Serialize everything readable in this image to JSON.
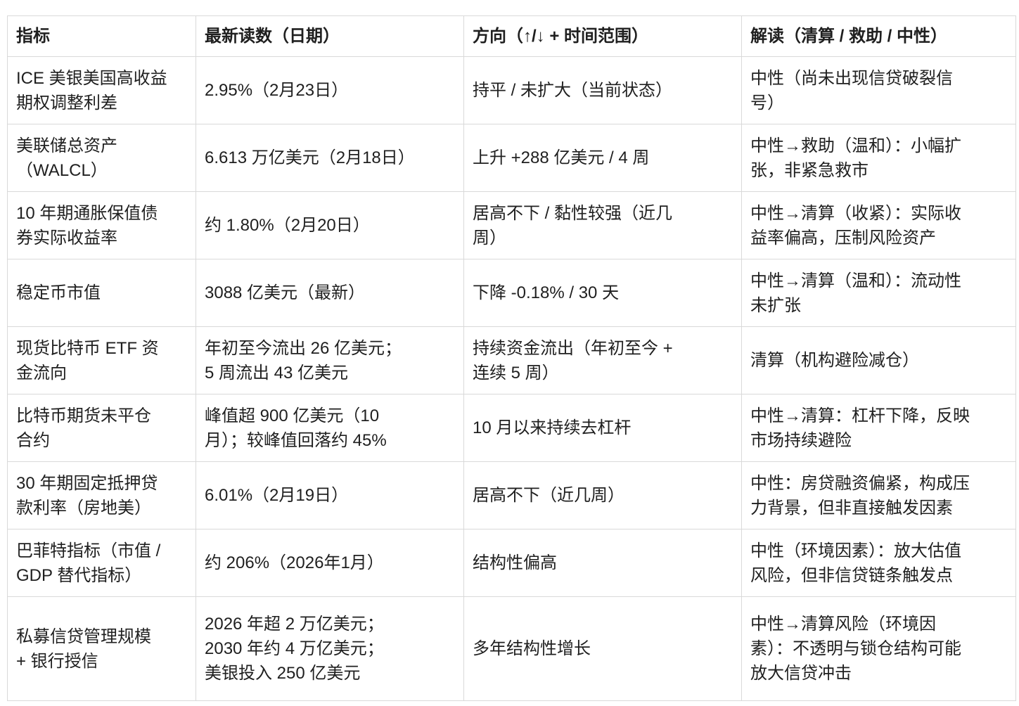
{
  "table": {
    "columns": [
      {
        "key": "indicator",
        "label": "指标"
      },
      {
        "key": "reading",
        "label": "最新读数（日期）"
      },
      {
        "key": "direction",
        "label": "方向（↑/↓ + 时间范围）"
      },
      {
        "key": "interpretation",
        "label": "解读（清算 / 救助 / 中性）"
      }
    ],
    "rows": [
      {
        "indicator": "ICE 美银美国高收益\n期权调整利差",
        "reading": "2.95%（2月23日）",
        "direction": "持平 / 未扩大（当前状态）",
        "interpretation": "中性（尚未出现信贷破裂信\n号）"
      },
      {
        "indicator": "美联储总资产\n（WALCL）",
        "reading": "6.613 万亿美元（2月18日）",
        "direction": "上升 +288 亿美元 / 4 周",
        "interpretation": "中性→救助（温和）：小幅扩\n张，非紧急救市"
      },
      {
        "indicator": "10 年期通胀保值债\n券实际收益率",
        "reading": "约 1.80%（2月20日）",
        "direction": "居高不下 / 黏性较强（近几\n周）",
        "interpretation": "中性→清算（收紧）：实际收\n益率偏高，压制风险资产"
      },
      {
        "indicator": "稳定币市值",
        "reading": "3088 亿美元（最新）",
        "direction": "下降 -0.18% / 30 天",
        "interpretation": "中性→清算（温和）：流动性\n未扩张"
      },
      {
        "indicator": "现货比特币 ETF 资\n金流向",
        "reading": "年初至今流出 26 亿美元；\n5 周流出 43 亿美元",
        "direction": "持续资金流出（年初至今 +\n连续 5 周）",
        "interpretation": "清算（机构避险减仓）"
      },
      {
        "indicator": "比特币期货未平仓\n合约",
        "reading": "峰值超 900 亿美元（10\n月）；较峰值回落约 45%",
        "direction": "10 月以来持续去杠杆",
        "interpretation": "中性→清算：杠杆下降，反映\n市场持续避险"
      },
      {
        "indicator": "30 年期固定抵押贷\n款利率（房地美）",
        "reading": "6.01%（2月19日）",
        "direction": "居高不下（近几周）",
        "interpretation": "中性：房贷融资偏紧，构成压\n力背景，但非直接触发因素"
      },
      {
        "indicator": "巴菲特指标（市值 /\nGDP 替代指标）",
        "reading": "约 206%（2026年1月）",
        "direction": "结构性偏高",
        "interpretation": "中性（环境因素）：放大估值\n风险，但非信贷链条触发点"
      },
      {
        "indicator": "私募信贷管理规模\n+ 银行授信",
        "reading": "2026 年超 2 万亿美元；\n2030 年约 4 万亿美元；\n美银投入 250 亿美元",
        "direction": "多年结构性增长",
        "interpretation": "中性→清算风险（环境因\n素）：不透明与锁仓结构可能\n放大信贷冲击"
      }
    ]
  }
}
